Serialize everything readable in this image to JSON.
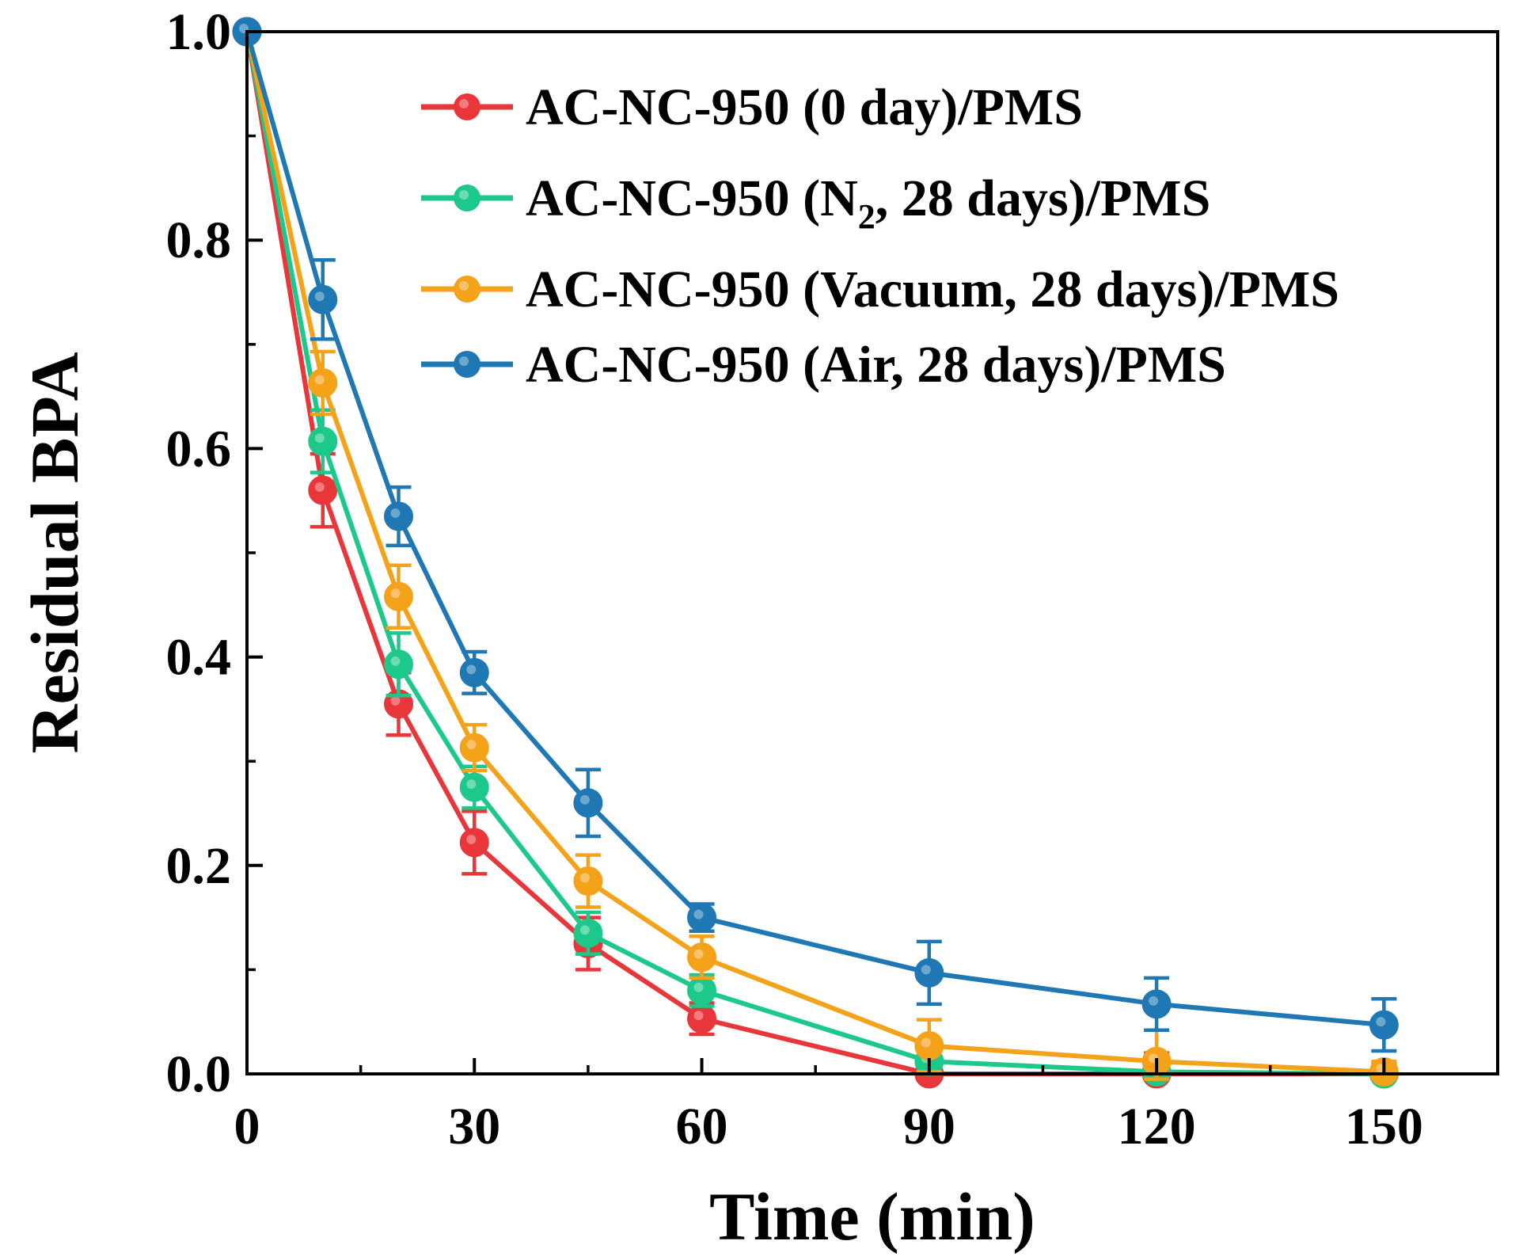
{
  "chart_data": {
    "type": "line",
    "xlabel": "Time (min)",
    "ylabel": "Residual BPA",
    "xlim": [
      0,
      165
    ],
    "ylim": [
      0.0,
      1.0
    ],
    "x_ticks": [
      0,
      30,
      60,
      90,
      120,
      150
    ],
    "x_tick_labels": [
      "0",
      "30",
      "60",
      "90",
      "120",
      "150"
    ],
    "y_ticks": [
      0.0,
      0.2,
      0.4,
      0.6,
      0.8,
      1.0
    ],
    "y_tick_labels": [
      "0.0",
      "0.2",
      "0.4",
      "0.6",
      "0.8",
      "1.0"
    ],
    "legend_position": "top-right",
    "x": [
      0,
      10,
      20,
      30,
      45,
      60,
      90,
      120,
      150
    ],
    "series": [
      {
        "name": "AC-NC-950 (0 day)/PMS",
        "legend_parts": [
          "AC-NC-950 (0 day)/PMS"
        ],
        "color": "#e8363a",
        "values": [
          1.0,
          0.56,
          0.355,
          0.222,
          0.125,
          0.053,
          0.0,
          0.0,
          0.0
        ],
        "errors": [
          0.0,
          0.035,
          0.03,
          0.03,
          0.025,
          0.015,
          0.01,
          0.02,
          0.01
        ]
      },
      {
        "name": "AC-NC-950 (N2, 28 days)/PMS",
        "legend_parts": [
          "AC-NC-950 (N",
          "2",
          ", 28 days)/PMS"
        ],
        "color": "#1cc98a",
        "values": [
          1.0,
          0.607,
          0.393,
          0.275,
          0.135,
          0.08,
          0.012,
          0.002,
          0.0
        ],
        "errors": [
          0.0,
          0.03,
          0.03,
          0.02,
          0.02,
          0.015,
          0.012,
          0.01,
          0.005
        ]
      },
      {
        "name": "AC-NC-950 (Vacuum, 28 days)/PMS",
        "legend_parts": [
          "AC-NC-950 (Vacuum, 28 days)/PMS"
        ],
        "color": "#f5a21b",
        "values": [
          1.0,
          0.663,
          0.458,
          0.313,
          0.185,
          0.112,
          0.027,
          0.012,
          0.002
        ],
        "errors": [
          0.0,
          0.03,
          0.03,
          0.022,
          0.025,
          0.02,
          0.025,
          0.03,
          0.01
        ]
      },
      {
        "name": "AC-NC-950 (Air, 28 days)/PMS",
        "legend_parts": [
          "AC-NC-950 (Air, 28 days)/PMS"
        ],
        "color": "#1f78b4",
        "values": [
          1.0,
          0.743,
          0.535,
          0.385,
          0.26,
          0.15,
          0.097,
          0.067,
          0.047
        ],
        "errors": [
          0.0,
          0.038,
          0.028,
          0.02,
          0.032,
          0.013,
          0.03,
          0.025,
          0.025
        ]
      }
    ]
  }
}
